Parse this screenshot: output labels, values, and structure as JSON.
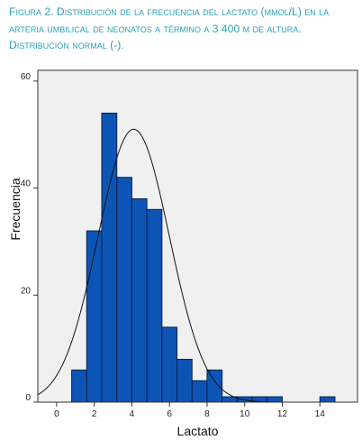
{
  "caption": {
    "lead": "Figura 2.",
    "text": "Distribución de la frecuencia del lactato (mmol/L) en la arteria umbilical  de neonatos a término a 3 400 m de altura. Distribución normal (-)."
  },
  "chart_data": {
    "type": "bar",
    "subtype": "histogram",
    "xlabel": "Lactato",
    "ylabel": "Frecuencia",
    "xlim": [
      -1,
      16
    ],
    "ylim": [
      0,
      62
    ],
    "x_ticks": [
      0,
      2,
      4,
      6,
      8,
      10,
      12,
      14
    ],
    "x_tick_labels": [
      "0",
      "2",
      "4",
      "6",
      "8",
      "10",
      "12",
      "14"
    ],
    "y_ticks": [
      0,
      20,
      40,
      60
    ],
    "y_tick_labels": [
      "0",
      "20",
      "40",
      "60"
    ],
    "bin_width": 0.8,
    "bins": [
      {
        "x0": 0.8,
        "x1": 1.6,
        "value": 6
      },
      {
        "x0": 1.6,
        "x1": 2.4,
        "value": 32
      },
      {
        "x0": 2.4,
        "x1": 3.2,
        "value": 54
      },
      {
        "x0": 3.2,
        "x1": 4.0,
        "value": 42
      },
      {
        "x0": 4.0,
        "x1": 4.8,
        "value": 38
      },
      {
        "x0": 4.8,
        "x1": 5.6,
        "value": 36
      },
      {
        "x0": 5.6,
        "x1": 6.4,
        "value": 14
      },
      {
        "x0": 6.4,
        "x1": 7.2,
        "value": 8
      },
      {
        "x0": 7.2,
        "x1": 8.0,
        "value": 4
      },
      {
        "x0": 8.0,
        "x1": 8.8,
        "value": 6
      },
      {
        "x0": 8.8,
        "x1": 9.6,
        "value": 1
      },
      {
        "x0": 9.6,
        "x1": 10.4,
        "value": 1
      },
      {
        "x0": 10.4,
        "x1": 11.2,
        "value": 1
      },
      {
        "x0": 11.2,
        "x1": 12.0,
        "value": 1
      },
      {
        "x0": 14.0,
        "x1": 14.8,
        "value": 1
      }
    ],
    "normal_curve": {
      "mean": 4.1,
      "sd": 1.9,
      "peak": 51
    },
    "colors": {
      "bar_fill": "#0d55b5",
      "bar_stroke": "#0a1f4a",
      "plot_bg": "#f0f0f0",
      "curve": "#111111"
    },
    "grid": false,
    "legend": "none"
  }
}
